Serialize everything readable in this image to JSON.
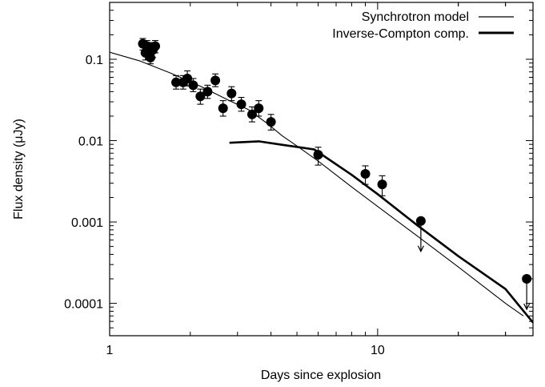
{
  "chart_data": {
    "type": "scatter",
    "title": "",
    "xlabel": "Days since explosion",
    "ylabel": "Flux density (μJy)",
    "x_scale": "log",
    "y_scale": "log",
    "xlim": [
      1,
      38
    ],
    "ylim": [
      4e-05,
      0.5
    ],
    "x_ticks": [
      {
        "value": 1,
        "label": "1"
      },
      {
        "value": 10,
        "label": "10"
      }
    ],
    "y_ticks": [
      {
        "value": 0.1,
        "label": "0.1"
      },
      {
        "value": 0.01,
        "label": "0.01"
      },
      {
        "value": 0.001,
        "label": "0.001"
      },
      {
        "value": 0.0001,
        "label": "0.0001"
      }
    ],
    "grid": false,
    "legend_position": "top-right",
    "series": [
      {
        "name": "Synchrotron model",
        "kind": "line",
        "line_width": "thin",
        "color": "#000000",
        "points": [
          [
            1.0,
            0.122
          ],
          [
            1.3,
            0.095
          ],
          [
            1.7,
            0.067
          ],
          [
            2.2,
            0.046
          ],
          [
            2.8,
            0.031
          ],
          [
            3.3,
            0.024
          ],
          [
            3.9,
            0.016
          ],
          [
            4.4,
            0.0115
          ],
          [
            5.0,
            0.0086
          ],
          [
            6.0,
            0.0056
          ],
          [
            8.0,
            0.0027
          ],
          [
            10.0,
            0.00155
          ],
          [
            14.0,
            0.00068
          ],
          [
            20.0,
            0.00028
          ],
          [
            30.0,
            0.0001
          ],
          [
            35.0,
            7e-05
          ]
        ]
      },
      {
        "name": "Inverse-Compton comp.",
        "kind": "line",
        "line_width": "thick",
        "color": "#000000",
        "points": [
          [
            2.8,
            0.0094
          ],
          [
            3.6,
            0.0098
          ],
          [
            4.5,
            0.0088
          ],
          [
            5.8,
            0.0078
          ],
          [
            8.0,
            0.0038
          ],
          [
            10.0,
            0.0022
          ],
          [
            14.0,
            0.00092
          ],
          [
            20.0,
            0.00038
          ],
          [
            30.0,
            0.00015
          ],
          [
            38.0,
            5.8e-05
          ]
        ]
      },
      {
        "name": "",
        "kind": "points",
        "color": "#000000",
        "points": [
          {
            "x": 1.33,
            "y": 0.155,
            "err_hi": 0.18,
            "err_lo": 0.13
          },
          {
            "x": 1.36,
            "y": 0.12,
            "err_hi": 0.15,
            "err_lo": 0.098
          },
          {
            "x": 1.38,
            "y": 0.145,
            "err_hi": 0.17,
            "err_lo": 0.12
          },
          {
            "x": 1.4,
            "y": 0.125,
            "err_hi": 0.16,
            "err_lo": 0.1
          },
          {
            "x": 1.42,
            "y": 0.105,
            "err_hi": 0.13,
            "err_lo": 0.088
          },
          {
            "x": 1.45,
            "y": 0.13,
            "err_hi": 0.16,
            "err_lo": 0.105
          },
          {
            "x": 1.48,
            "y": 0.145,
            "err_hi": 0.17,
            "err_lo": 0.12
          },
          {
            "x": 1.77,
            "y": 0.052,
            "err_hi": 0.063,
            "err_lo": 0.043
          },
          {
            "x": 1.88,
            "y": 0.052,
            "err_hi": 0.063,
            "err_lo": 0.043
          },
          {
            "x": 1.95,
            "y": 0.058,
            "err_hi": 0.072,
            "err_lo": 0.047
          },
          {
            "x": 2.05,
            "y": 0.048,
            "err_hi": 0.058,
            "err_lo": 0.04
          },
          {
            "x": 2.18,
            "y": 0.035,
            "err_hi": 0.043,
            "err_lo": 0.028
          },
          {
            "x": 2.32,
            "y": 0.04,
            "err_hi": 0.048,
            "err_lo": 0.033
          },
          {
            "x": 2.48,
            "y": 0.055,
            "err_hi": 0.066,
            "err_lo": 0.046
          },
          {
            "x": 2.65,
            "y": 0.025,
            "err_hi": 0.031,
            "err_lo": 0.02
          },
          {
            "x": 2.85,
            "y": 0.038,
            "err_hi": 0.046,
            "err_lo": 0.031
          },
          {
            "x": 3.1,
            "y": 0.028,
            "err_hi": 0.034,
            "err_lo": 0.023
          },
          {
            "x": 3.4,
            "y": 0.021,
            "err_hi": 0.026,
            "err_lo": 0.017
          },
          {
            "x": 3.6,
            "y": 0.025,
            "err_hi": 0.031,
            "err_lo": 0.02
          },
          {
            "x": 4.0,
            "y": 0.017,
            "err_hi": 0.021,
            "err_lo": 0.0135
          },
          {
            "x": 6.0,
            "y": 0.0067,
            "err_hi": 0.0083,
            "err_lo": 0.005
          },
          {
            "x": 9.0,
            "y": 0.0039,
            "err_hi": 0.0049,
            "err_lo": 0.0029
          },
          {
            "x": 10.4,
            "y": 0.0029,
            "err_hi": 0.0037,
            "err_lo": 0.0021
          },
          {
            "x": 14.5,
            "y": 0.00103,
            "upper_limit": true
          },
          {
            "x": 36.0,
            "y": 0.0002,
            "upper_limit": true
          }
        ]
      }
    ]
  }
}
